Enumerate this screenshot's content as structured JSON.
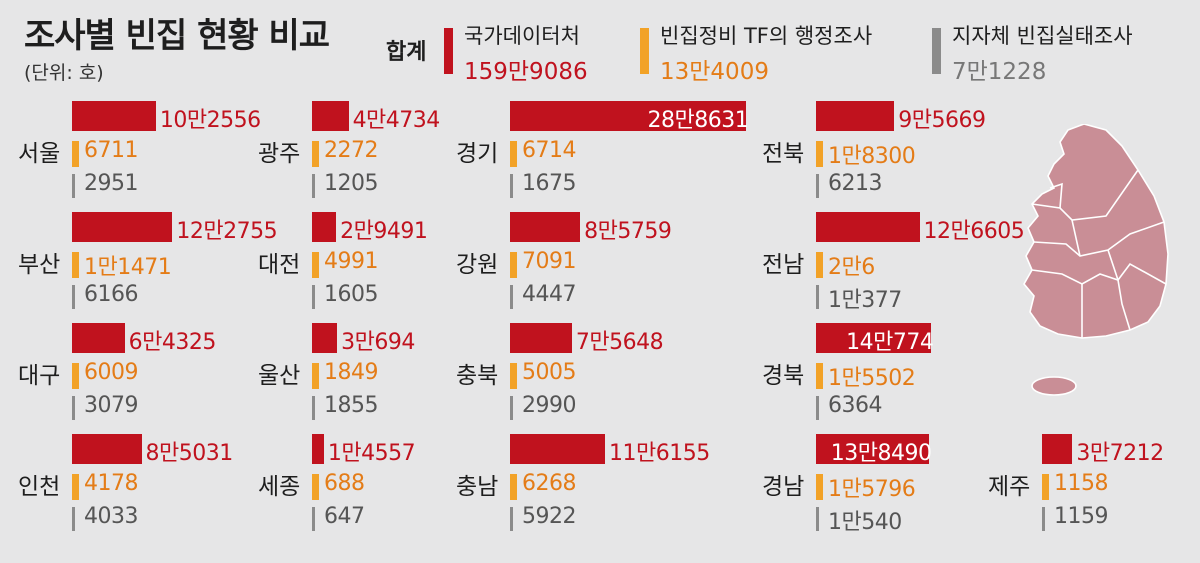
{
  "title": "조사별 빈집 현황 비교",
  "unit": "(단위: 호)",
  "legend_label": "합계",
  "colors": {
    "national": "#c0121e",
    "tf": "#f2a227",
    "local": "#8b8b8b",
    "map": "#c98e96"
  },
  "chart_data": {
    "type": "bar",
    "title": "조사별 빈집 현황 비교",
    "unit": "(단위: 호)",
    "series": [
      {
        "name": "국가데이터처",
        "total_label": "159만9086",
        "total": 1599086
      },
      {
        "name": "빈집정비 TF의 행정조사",
        "total_label": "13만4009",
        "total": 134009
      },
      {
        "name": "지자체 빈집실태조사",
        "total_label": "7만1228",
        "total": 71228
      }
    ],
    "regions": [
      {
        "name": "서울",
        "values": [
          102556,
          6711,
          2951
        ],
        "labels": [
          "10만2556",
          "6711",
          "2951"
        ]
      },
      {
        "name": "광주",
        "values": [
          44734,
          2272,
          1205
        ],
        "labels": [
          "4만4734",
          "2272",
          "1205"
        ]
      },
      {
        "name": "경기",
        "values": [
          288631,
          6714,
          1675
        ],
        "labels": [
          "28만8631",
          "6714",
          "1675"
        ]
      },
      {
        "name": "전북",
        "values": [
          95669,
          18300,
          6213
        ],
        "labels": [
          "9만5669",
          "1만8300",
          "6213"
        ]
      },
      {
        "name": "부산",
        "values": [
          122755,
          11471,
          6166
        ],
        "labels": [
          "12만2755",
          "1만1471",
          "6166"
        ]
      },
      {
        "name": "대전",
        "values": [
          29491,
          4991,
          1605
        ],
        "labels": [
          "2만9491",
          "4991",
          "1605"
        ]
      },
      {
        "name": "강원",
        "values": [
          85759,
          7091,
          4447
        ],
        "labels": [
          "8만5759",
          "7091",
          "4447"
        ]
      },
      {
        "name": "전남",
        "values": [
          126605,
          20006,
          10377
        ],
        "labels": [
          "12만6605",
          "2만6",
          "1만377"
        ]
      },
      {
        "name": "대구",
        "values": [
          64325,
          6009,
          3079
        ],
        "labels": [
          "6만4325",
          "6009",
          "3079"
        ]
      },
      {
        "name": "울산",
        "values": [
          30694,
          1849,
          1855
        ],
        "labels": [
          "3만694",
          "1849",
          "1855"
        ]
      },
      {
        "name": "충북",
        "values": [
          75648,
          5005,
          2990
        ],
        "labels": [
          "7만5648",
          "5005",
          "2990"
        ]
      },
      {
        "name": "경북",
        "values": [
          140774,
          15502,
          6364
        ],
        "labels": [
          "14만774",
          "1만5502",
          "6364"
        ]
      },
      {
        "name": "인천",
        "values": [
          85031,
          4178,
          4033
        ],
        "labels": [
          "8만5031",
          "4178",
          "4033"
        ]
      },
      {
        "name": "세종",
        "values": [
          14557,
          688,
          647
        ],
        "labels": [
          "1만4557",
          "688",
          "647"
        ]
      },
      {
        "name": "충남",
        "values": [
          116155,
          6268,
          5922
        ],
        "labels": [
          "11만6155",
          "6268",
          "5922"
        ]
      },
      {
        "name": "경남",
        "values": [
          138490,
          15796,
          10540
        ],
        "labels": [
          "13만8490",
          "1만5796",
          "1만540"
        ]
      },
      {
        "name": "제주",
        "values": [
          37212,
          1158,
          1159
        ],
        "labels": [
          "3만7212",
          "1158",
          "1159"
        ]
      }
    ]
  }
}
